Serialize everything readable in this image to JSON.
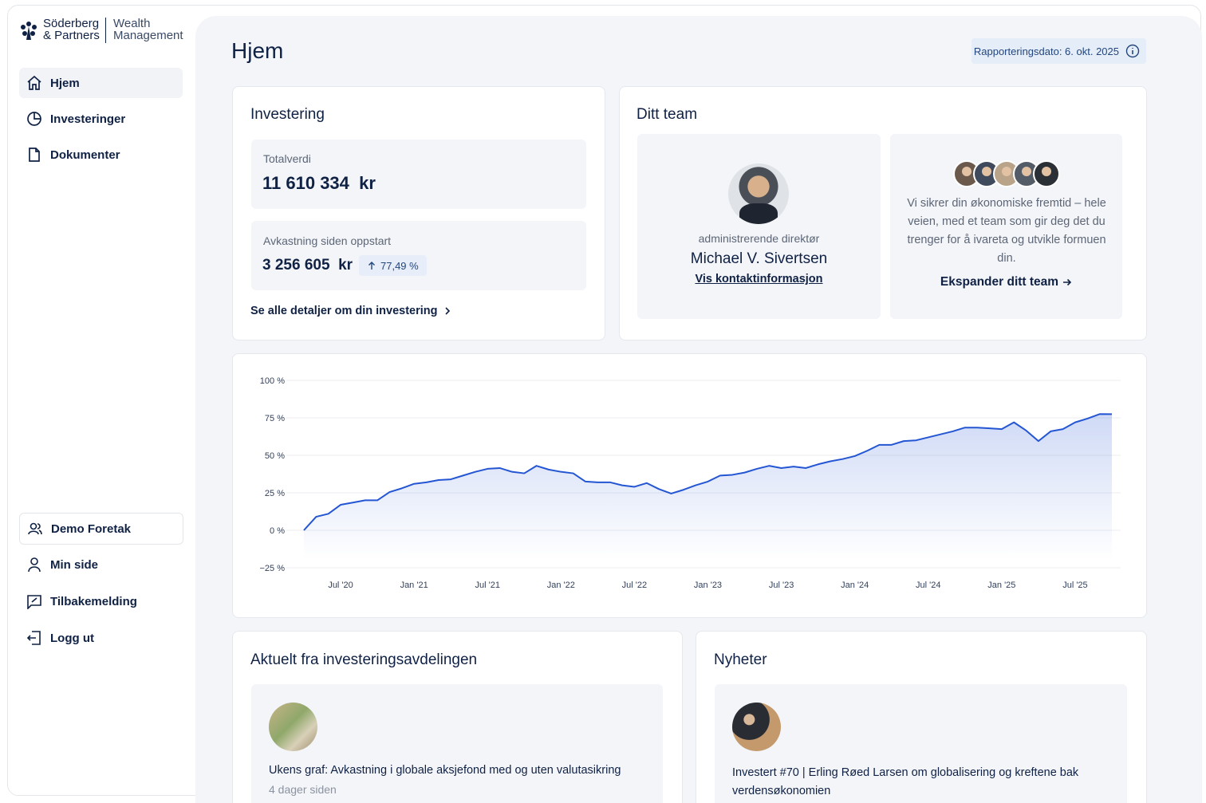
{
  "sidebar": {
    "brand": {
      "line1": "Söderberg",
      "line2": "& Partners",
      "sub1": "Wealth",
      "sub2": "Management"
    },
    "nav": [
      "Hjem",
      "Investeringer",
      "Dokumenter"
    ],
    "bottom_nav": [
      "Demo Foretak",
      "Min side",
      "Tilbakemelding",
      "Logg ut"
    ]
  },
  "header": {
    "title": "Hjem",
    "report_date": "Rapporteringsdato: 6. okt. 2025"
  },
  "investment": {
    "title": "Investering",
    "total_label": "Totalverdi",
    "total_value": "11 610 334  kr",
    "return_label": "Avkastning siden oppstart",
    "return_value": "3 256 605  kr",
    "return_pct": "77,49 %",
    "details_link": "Se alle detaljer om din investering"
  },
  "team": {
    "title": "Ditt team",
    "role": "administrerende direktør",
    "name": "Michael V. Sivertsen",
    "contact_link": "Vis kontaktinformasjon",
    "description": "Vi sikrer din økonomiske fremtid – hele veien, med et team som gir deg det du trenger for å ivareta og utvikle formuen din.",
    "expand_link": "Ekspander ditt team"
  },
  "chart_data": {
    "type": "line",
    "color": "#2456d3",
    "categories": [
      null,
      null,
      null,
      "Jul '20",
      null,
      null,
      null,
      null,
      null,
      "Jan '21",
      null,
      null,
      null,
      null,
      null,
      "Jul '21",
      null,
      null,
      null,
      null,
      null,
      "Jan '22",
      null,
      null,
      null,
      null,
      null,
      "Jul '22",
      null,
      null,
      null,
      null,
      null,
      "Jan '23",
      null,
      null,
      null,
      null,
      null,
      "Jul '23",
      null,
      null,
      null,
      null,
      null,
      "Jan '24",
      null,
      null,
      null,
      null,
      null,
      "Jul '24",
      null,
      null,
      null,
      null,
      null,
      "Jan '25",
      null,
      null,
      null,
      null,
      null,
      "Jul '25",
      null,
      null,
      null
    ],
    "values": [
      0,
      9,
      11,
      17,
      18.5,
      20,
      20,
      25.5,
      28,
      31,
      32,
      33.5,
      34,
      36.5,
      39,
      41,
      41.5,
      39,
      38,
      43,
      40.5,
      39,
      38,
      32.5,
      32,
      32,
      30,
      29,
      31.5,
      27.5,
      24.5,
      27,
      30,
      32.5,
      36.5,
      37,
      38.5,
      41,
      43,
      41.5,
      42.5,
      41.5,
      44,
      46,
      47.5,
      49.5,
      53,
      57,
      57,
      59.5,
      60,
      62,
      64,
      66,
      68.5,
      68.5,
      68,
      67.5,
      72,
      66.5,
      59.5,
      66,
      67.5,
      72,
      74.5,
      77.5,
      77.49
    ],
    "ylim": [
      -25,
      100
    ],
    "yticks": [
      {
        "value": -25,
        "label": "−25 %"
      },
      {
        "value": 0,
        "label": "0 %"
      },
      {
        "value": 25,
        "label": "25 %"
      },
      {
        "value": 50,
        "label": "50 %"
      },
      {
        "value": 75,
        "label": "75 %"
      },
      {
        "value": 100,
        "label": "100 %"
      }
    ],
    "grid": true
  },
  "news": [
    {
      "title": "Aktuelt fra investeringsavdelingen",
      "item": "Ukens graf: Avkastning i globale aksjefond med og uten valutasikring",
      "time": "4 dager siden"
    },
    {
      "title": "Nyheter",
      "item": "Investert #70 | Erling Røed Larsen om globalisering og kreftene bak verdensøkonomien"
    }
  ]
}
